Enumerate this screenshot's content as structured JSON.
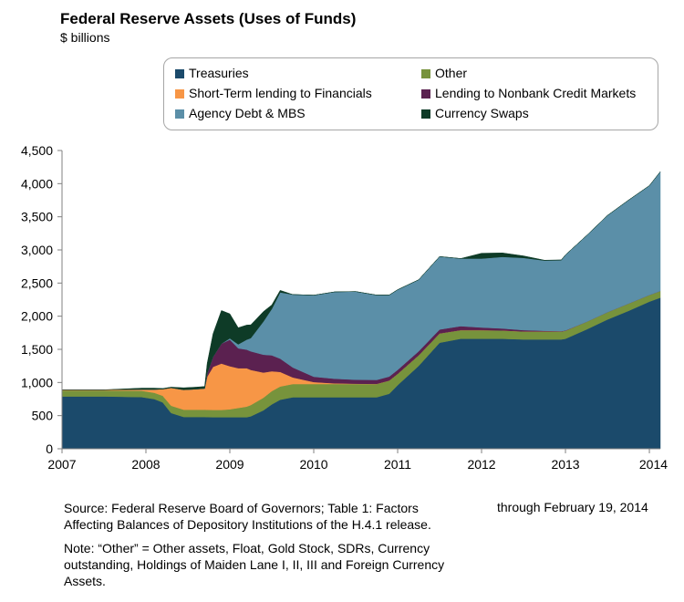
{
  "chart_data": {
    "type": "area",
    "stacked": true,
    "title": "Federal Reserve Assets (Uses of Funds)",
    "subtitle": "$ billions",
    "xlim": [
      2007,
      2014.13
    ],
    "ylim": [
      0,
      4500
    ],
    "x_ticks": [
      "2007",
      "2008",
      "2009",
      "2010",
      "2011",
      "2012",
      "2013",
      "2014"
    ],
    "y_ticks": [
      "0",
      "500",
      "1,000",
      "1,500",
      "2,000",
      "2,500",
      "3,000",
      "3,500",
      "4,000",
      "4,500"
    ],
    "legend_position": "top",
    "x": [
      2007.0,
      2007.5,
      2007.95,
      2008.1,
      2008.2,
      2008.3,
      2008.45,
      2008.6,
      2008.7,
      2008.73,
      2008.8,
      2008.9,
      2009.0,
      2009.1,
      2009.2,
      2009.25,
      2009.4,
      2009.5,
      2009.6,
      2009.75,
      2010.0,
      2010.25,
      2010.5,
      2010.75,
      2010.9,
      2011.0,
      2011.25,
      2011.5,
      2011.75,
      2012.0,
      2012.25,
      2012.5,
      2012.75,
      2012.95,
      2013.0,
      2013.25,
      2013.5,
      2013.75,
      2014.0,
      2014.13
    ],
    "series": [
      {
        "name": "Treasuries",
        "color": "#1b4a6b",
        "values": [
          790,
          790,
          780,
          750,
          700,
          540,
          480,
          480,
          480,
          478,
          476,
          476,
          476,
          476,
          476,
          490,
          580,
          670,
          740,
          777,
          777,
          777,
          777,
          777,
          830,
          960,
          1250,
          1600,
          1660,
          1660,
          1660,
          1650,
          1650,
          1650,
          1660,
          1800,
          1950,
          2080,
          2220,
          2280
        ]
      },
      {
        "name": "Other",
        "color": "#77933c",
        "values": [
          90,
          90,
          95,
          95,
          100,
          110,
          110,
          110,
          110,
          110,
          110,
          110,
          120,
          140,
          160,
          170,
          190,
          200,
          200,
          200,
          200,
          200,
          200,
          200,
          200,
          170,
          160,
          140,
          130,
          130,
          125,
          120,
          120,
          120,
          120,
          115,
          110,
          110,
          100,
          100
        ]
      },
      {
        "name": "Short-Term lending to Financials",
        "color": "#f79646",
        "values": [
          10,
          10,
          20,
          50,
          100,
          270,
          300,
          310,
          320,
          500,
          650,
          700,
          650,
          600,
          580,
          530,
          380,
          300,
          220,
          100,
          30,
          10,
          5,
          2,
          0,
          0,
          0,
          0,
          0,
          0,
          0,
          0,
          0,
          0,
          0,
          0,
          0,
          0,
          0,
          0
        ]
      },
      {
        "name": "Lending to Nonbank Credit Markets",
        "color": "#5b2150",
        "values": [
          0,
          0,
          0,
          0,
          0,
          0,
          0,
          0,
          0,
          50,
          150,
          300,
          400,
          300,
          280,
          280,
          270,
          240,
          200,
          150,
          80,
          70,
          60,
          60,
          60,
          60,
          60,
          60,
          60,
          40,
          30,
          20,
          10,
          5,
          5,
          0,
          0,
          0,
          0,
          0
        ]
      },
      {
        "name": "Agency Debt & MBS",
        "color": "#5b8fa8",
        "values": [
          0,
          0,
          0,
          0,
          0,
          0,
          0,
          0,
          0,
          0,
          0,
          0,
          20,
          60,
          150,
          200,
          500,
          700,
          1000,
          1100,
          1230,
          1310,
          1330,
          1280,
          1230,
          1210,
          1080,
          1100,
          1020,
          1040,
          1080,
          1090,
          1060,
          1070,
          1140,
          1300,
          1460,
          1560,
          1650,
          1800
        ]
      },
      {
        "name": "Currency Swaps",
        "color": "#0e3b27",
        "values": [
          0,
          0,
          20,
          20,
          10,
          10,
          30,
          30,
          30,
          150,
          350,
          500,
          370,
          250,
          220,
          200,
          150,
          60,
          30,
          0,
          0,
          0,
          0,
          0,
          0,
          0,
          0,
          0,
          0,
          80,
          60,
          30,
          5,
          5,
          0,
          0,
          0,
          0,
          0,
          0
        ]
      }
    ]
  },
  "legend": [
    {
      "label": "Treasuries",
      "color": "#1b4a6b"
    },
    {
      "label": "Other",
      "color": "#77933c"
    },
    {
      "label": "Short-Term lending to Financials",
      "color": "#f79646"
    },
    {
      "label": "Lending to Nonbank Credit Markets",
      "color": "#5b2150"
    },
    {
      "label": "Agency Debt & MBS",
      "color": "#5b8fa8"
    },
    {
      "label": "Currency Swaps",
      "color": "#0e3b27"
    }
  ],
  "footer": {
    "source": "Source: Federal Reserve Board of Governors; Table 1: Factors Affecting Balances of Depository Institutions of the H.4.1 release.",
    "through": "through February 19, 2014",
    "note": "Note: “Other” = Other assets, Float, Gold Stock, SDRs, Currency outstanding, Holdings of Maiden Lane I, II, III and Foreign Currency Assets."
  }
}
